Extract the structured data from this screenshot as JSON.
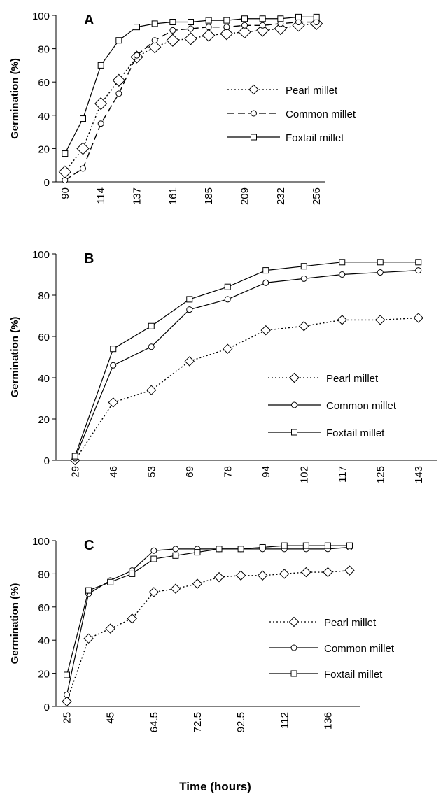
{
  "chart_data": [
    {
      "type": "line",
      "label": "A",
      "ylabel": "Germination (%)",
      "categories": [
        90,
        null,
        114,
        null,
        137,
        null,
        161,
        null,
        185,
        null,
        209,
        null,
        232,
        null,
        256
      ],
      "ylim": [
        0,
        100
      ],
      "yticks": [
        0,
        20,
        40,
        60,
        80,
        100
      ],
      "series": [
        {
          "name": "Pearl millet",
          "color": "#000000",
          "dash": "2,3",
          "marker": "diamond",
          "values": [
            6,
            20,
            47,
            61,
            75,
            81,
            85,
            86,
            88,
            89,
            90,
            91,
            92,
            94,
            95
          ]
        },
        {
          "name": "Common millet",
          "color": "#000000",
          "dash": "10,5",
          "marker": "circle",
          "values": [
            1,
            8,
            35,
            53,
            76,
            85,
            91,
            92,
            93,
            93,
            94,
            94,
            95,
            96,
            96
          ]
        },
        {
          "name": "Foxtail millet",
          "color": "#000000",
          "dash": "none",
          "marker": "square",
          "values": [
            17,
            38,
            70,
            85,
            93,
            95,
            96,
            96,
            97,
            97,
            98,
            98,
            98,
            99,
            99
          ]
        }
      ]
    },
    {
      "type": "line",
      "label": "B",
      "ylabel": "Germination (%)",
      "categories": [
        29,
        46,
        53,
        69,
        78,
        94,
        102,
        117,
        125,
        143
      ],
      "ylim": [
        0,
        100
      ],
      "yticks": [
        0,
        20,
        40,
        60,
        80,
        100
      ],
      "series": [
        {
          "name": "Pearl millet",
          "color": "#000000",
          "dash": "2,3",
          "marker": "diamond",
          "values": [
            0,
            28,
            34,
            48,
            54,
            63,
            65,
            68,
            68,
            69
          ]
        },
        {
          "name": "Common millet",
          "color": "#000000",
          "dash": "none",
          "marker": "circle",
          "values": [
            1,
            46,
            55,
            73,
            78,
            86,
            88,
            90,
            91,
            92
          ]
        },
        {
          "name": "Foxtail millet",
          "color": "#000000",
          "dash": "none",
          "marker": "square",
          "values": [
            2,
            54,
            65,
            78,
            84,
            92,
            94,
            96,
            96,
            96
          ]
        }
      ]
    },
    {
      "type": "line",
      "label": "C",
      "ylabel": "Germination (%)",
      "xlabel": "Time (hours)",
      "categories": [
        25,
        null,
        45,
        null,
        64.5,
        null,
        72.5,
        null,
        92.5,
        null,
        112,
        null,
        136,
        null
      ],
      "ylim": [
        0,
        100
      ],
      "yticks": [
        0,
        20,
        40,
        60,
        80,
        100
      ],
      "series": [
        {
          "name": "Pearl millet",
          "color": "#000000",
          "dash": "2,3",
          "marker": "diamond",
          "values": [
            3,
            41,
            47,
            53,
            69,
            71,
            74,
            78,
            79,
            79,
            80,
            81,
            81,
            82
          ]
        },
        {
          "name": "Common millet",
          "color": "#000000",
          "dash": "none",
          "marker": "circle",
          "values": [
            7,
            68,
            76,
            82,
            94,
            95,
            95,
            95,
            95,
            95,
            95,
            95,
            95,
            96
          ]
        },
        {
          "name": "Foxtail millet",
          "color": "#000000",
          "dash": "none",
          "marker": "square",
          "values": [
            19,
            70,
            75,
            80,
            89,
            91,
            93,
            95,
            95,
            96,
            97,
            97,
            97,
            97
          ]
        }
      ]
    }
  ]
}
